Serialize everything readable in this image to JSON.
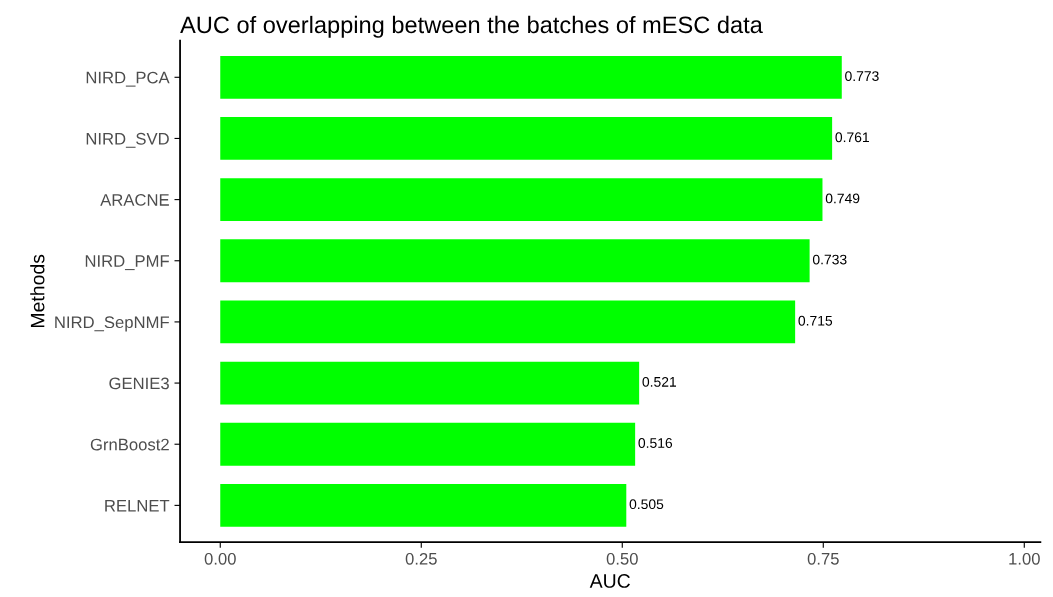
{
  "chart_data": {
    "type": "bar",
    "orientation": "horizontal",
    "title": "AUC of overlapping between the batches of mESC data",
    "xlabel": "AUC",
    "ylabel": "Methods",
    "categories": [
      "NIRD_PCA",
      "NIRD_SVD",
      "ARACNE",
      "NIRD_PMF",
      "NIRD_SepNMF",
      "GENIE3",
      "GrnBoost2",
      "RELNET"
    ],
    "values": [
      0.773,
      0.761,
      0.749,
      0.733,
      0.715,
      0.521,
      0.516,
      0.505
    ],
    "color": "#00ff00",
    "xlim": [
      -0.05,
      1.02
    ],
    "xticks": [
      {
        "value": 0,
        "label": "0.00"
      },
      {
        "value": 0.25,
        "label": "0.25"
      },
      {
        "value": 0.5,
        "label": "0.50"
      },
      {
        "value": 0.75,
        "label": "0.75"
      },
      {
        "value": 1,
        "label": "1.00"
      }
    ],
    "data_labels": true,
    "grid": false,
    "legend": false
  }
}
